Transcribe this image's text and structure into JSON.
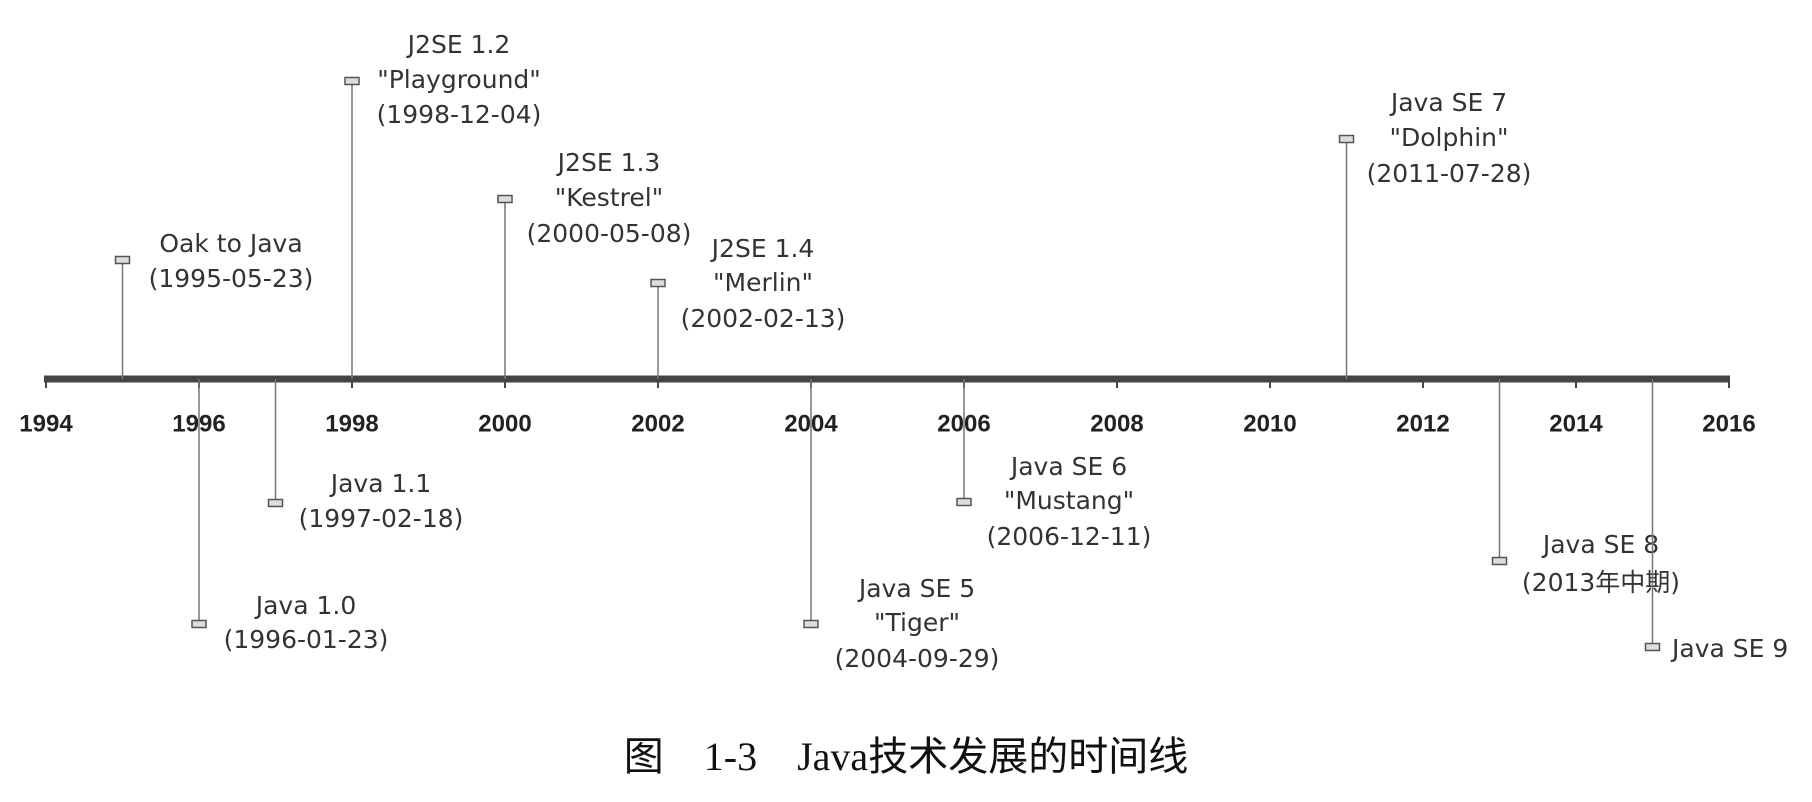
{
  "axis": {
    "years": [
      "1994",
      "1996",
      "1998",
      "2000",
      "2002",
      "2004",
      "2006",
      "2008",
      "2010",
      "2012",
      "2014",
      "2016"
    ]
  },
  "events": [
    {
      "lines": [
        "Oak to Java",
        "(1995-05-23)"
      ]
    },
    {
      "lines": [
        "Java 1.0",
        "(1996-01-23)"
      ]
    },
    {
      "lines": [
        "Java 1.1",
        "(1997-02-18)"
      ]
    },
    {
      "lines": [
        "J2SE 1.2",
        "\"Playground\"",
        "(1998-12-04)"
      ]
    },
    {
      "lines": [
        "J2SE 1.3",
        "\"Kestrel\"",
        "(2000-05-08)"
      ]
    },
    {
      "lines": [
        "J2SE 1.4",
        "\"Merlin\"",
        "(2002-02-13)"
      ]
    },
    {
      "lines": [
        "Java SE 5",
        "\"Tiger\"",
        "(2004-09-29)"
      ]
    },
    {
      "lines": [
        "Java SE 6",
        "\"Mustang\"",
        "(2006-12-11)"
      ]
    },
    {
      "lines": [
        "Java SE 7",
        "\"Dolphin\"",
        "(2011-07-28)"
      ]
    },
    {
      "lines": [
        "Java SE 8",
        "(2013年中期)"
      ]
    },
    {
      "lines": [
        "Java SE 9"
      ]
    }
  ],
  "caption": "图    1-3    Java技术发展的时间线"
}
